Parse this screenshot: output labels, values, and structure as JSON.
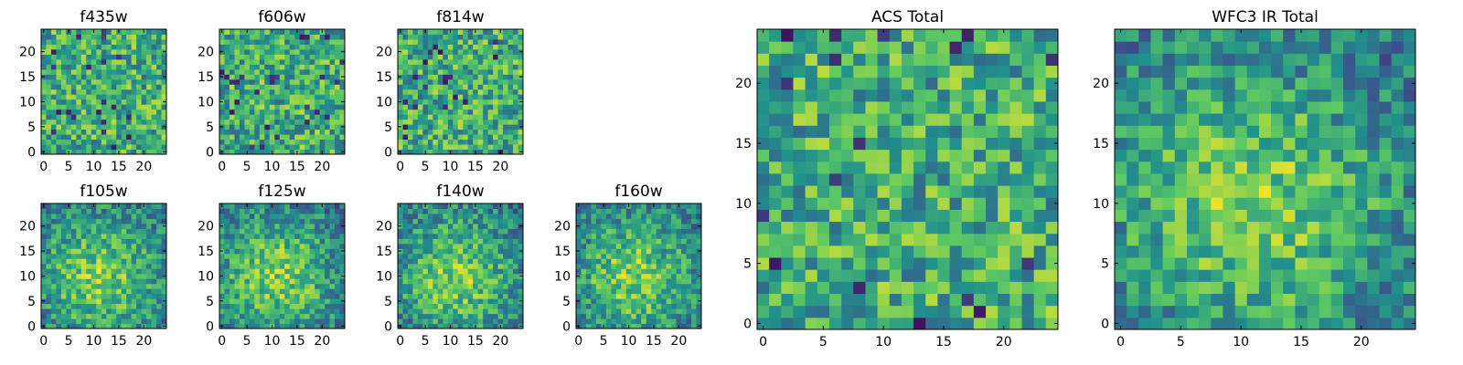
{
  "chart_data": [
    {
      "type": "heatmap",
      "title": "f435w",
      "seed": 11,
      "pattern": "noise",
      "xticks": [
        "0",
        "5",
        "10",
        "15",
        "20"
      ],
      "yticks": [
        "0",
        "5",
        "10",
        "15",
        "20"
      ],
      "xlim": [
        -0.5,
        24.5
      ],
      "ylim": [
        -0.5,
        24.5
      ],
      "grid": false
    },
    {
      "type": "heatmap",
      "title": "f606w",
      "seed": 23,
      "pattern": "noise",
      "xticks": [
        "0",
        "5",
        "10",
        "15",
        "20"
      ],
      "yticks": [
        "0",
        "5",
        "10",
        "15",
        "20"
      ],
      "xlim": [
        -0.5,
        24.5
      ],
      "ylim": [
        -0.5,
        24.5
      ],
      "grid": false
    },
    {
      "type": "heatmap",
      "title": "f814w",
      "seed": 37,
      "pattern": "noise",
      "xticks": [
        "0",
        "5",
        "10",
        "15",
        "20"
      ],
      "yticks": [
        "0",
        "5",
        "10",
        "15",
        "20"
      ],
      "xlim": [
        -0.5,
        24.5
      ],
      "ylim": [
        -0.5,
        24.5
      ],
      "grid": false
    },
    {
      "type": "heatmap",
      "title": "f105w",
      "seed": 41,
      "pattern": "blob",
      "xticks": [
        "0",
        "5",
        "10",
        "15",
        "20"
      ],
      "yticks": [
        "0",
        "5",
        "10",
        "15",
        "20"
      ],
      "xlim": [
        -0.5,
        24.5
      ],
      "ylim": [
        -0.5,
        24.5
      ],
      "grid": false
    },
    {
      "type": "heatmap",
      "title": "f125w",
      "seed": 53,
      "pattern": "blob",
      "xticks": [
        "0",
        "5",
        "10",
        "15",
        "20"
      ],
      "yticks": [
        "0",
        "5",
        "10",
        "15",
        "20"
      ],
      "xlim": [
        -0.5,
        24.5
      ],
      "ylim": [
        -0.5,
        24.5
      ],
      "grid": false
    },
    {
      "type": "heatmap",
      "title": "f140w",
      "seed": 67,
      "pattern": "blob",
      "xticks": [
        "0",
        "5",
        "10",
        "15",
        "20"
      ],
      "yticks": [
        "0",
        "5",
        "10",
        "15",
        "20"
      ],
      "xlim": [
        -0.5,
        24.5
      ],
      "ylim": [
        -0.5,
        24.5
      ],
      "grid": false
    },
    {
      "type": "heatmap",
      "title": "f160w",
      "seed": 79,
      "pattern": "blob",
      "xticks": [
        "0",
        "5",
        "10",
        "15",
        "20"
      ],
      "yticks": [
        "0",
        "5",
        "10",
        "15",
        "20"
      ],
      "xlim": [
        -0.5,
        24.5
      ],
      "ylim": [
        -0.5,
        24.5
      ],
      "grid": false
    },
    {
      "type": "heatmap",
      "title": "ACS Total",
      "seed": 97,
      "pattern": "noise",
      "xticks": [
        "0",
        "5",
        "10",
        "15",
        "20"
      ],
      "yticks": [
        "0",
        "5",
        "10",
        "15",
        "20"
      ],
      "xlim": [
        -0.5,
        24.5
      ],
      "ylim": [
        -0.5,
        24.5
      ],
      "grid": false
    },
    {
      "type": "heatmap",
      "title": "WFC3 IR Total",
      "seed": 131,
      "pattern": "blob",
      "xticks": [
        "0",
        "5",
        "10",
        "15",
        "20"
      ],
      "yticks": [
        "0",
        "5",
        "10",
        "15",
        "20"
      ],
      "xlim": [
        -0.5,
        24.5
      ],
      "ylim": [
        -0.5,
        24.5
      ],
      "grid": false
    }
  ],
  "colormap": [
    "#440154",
    "#3b528b",
    "#21918c",
    "#5ec962",
    "#fde725"
  ]
}
